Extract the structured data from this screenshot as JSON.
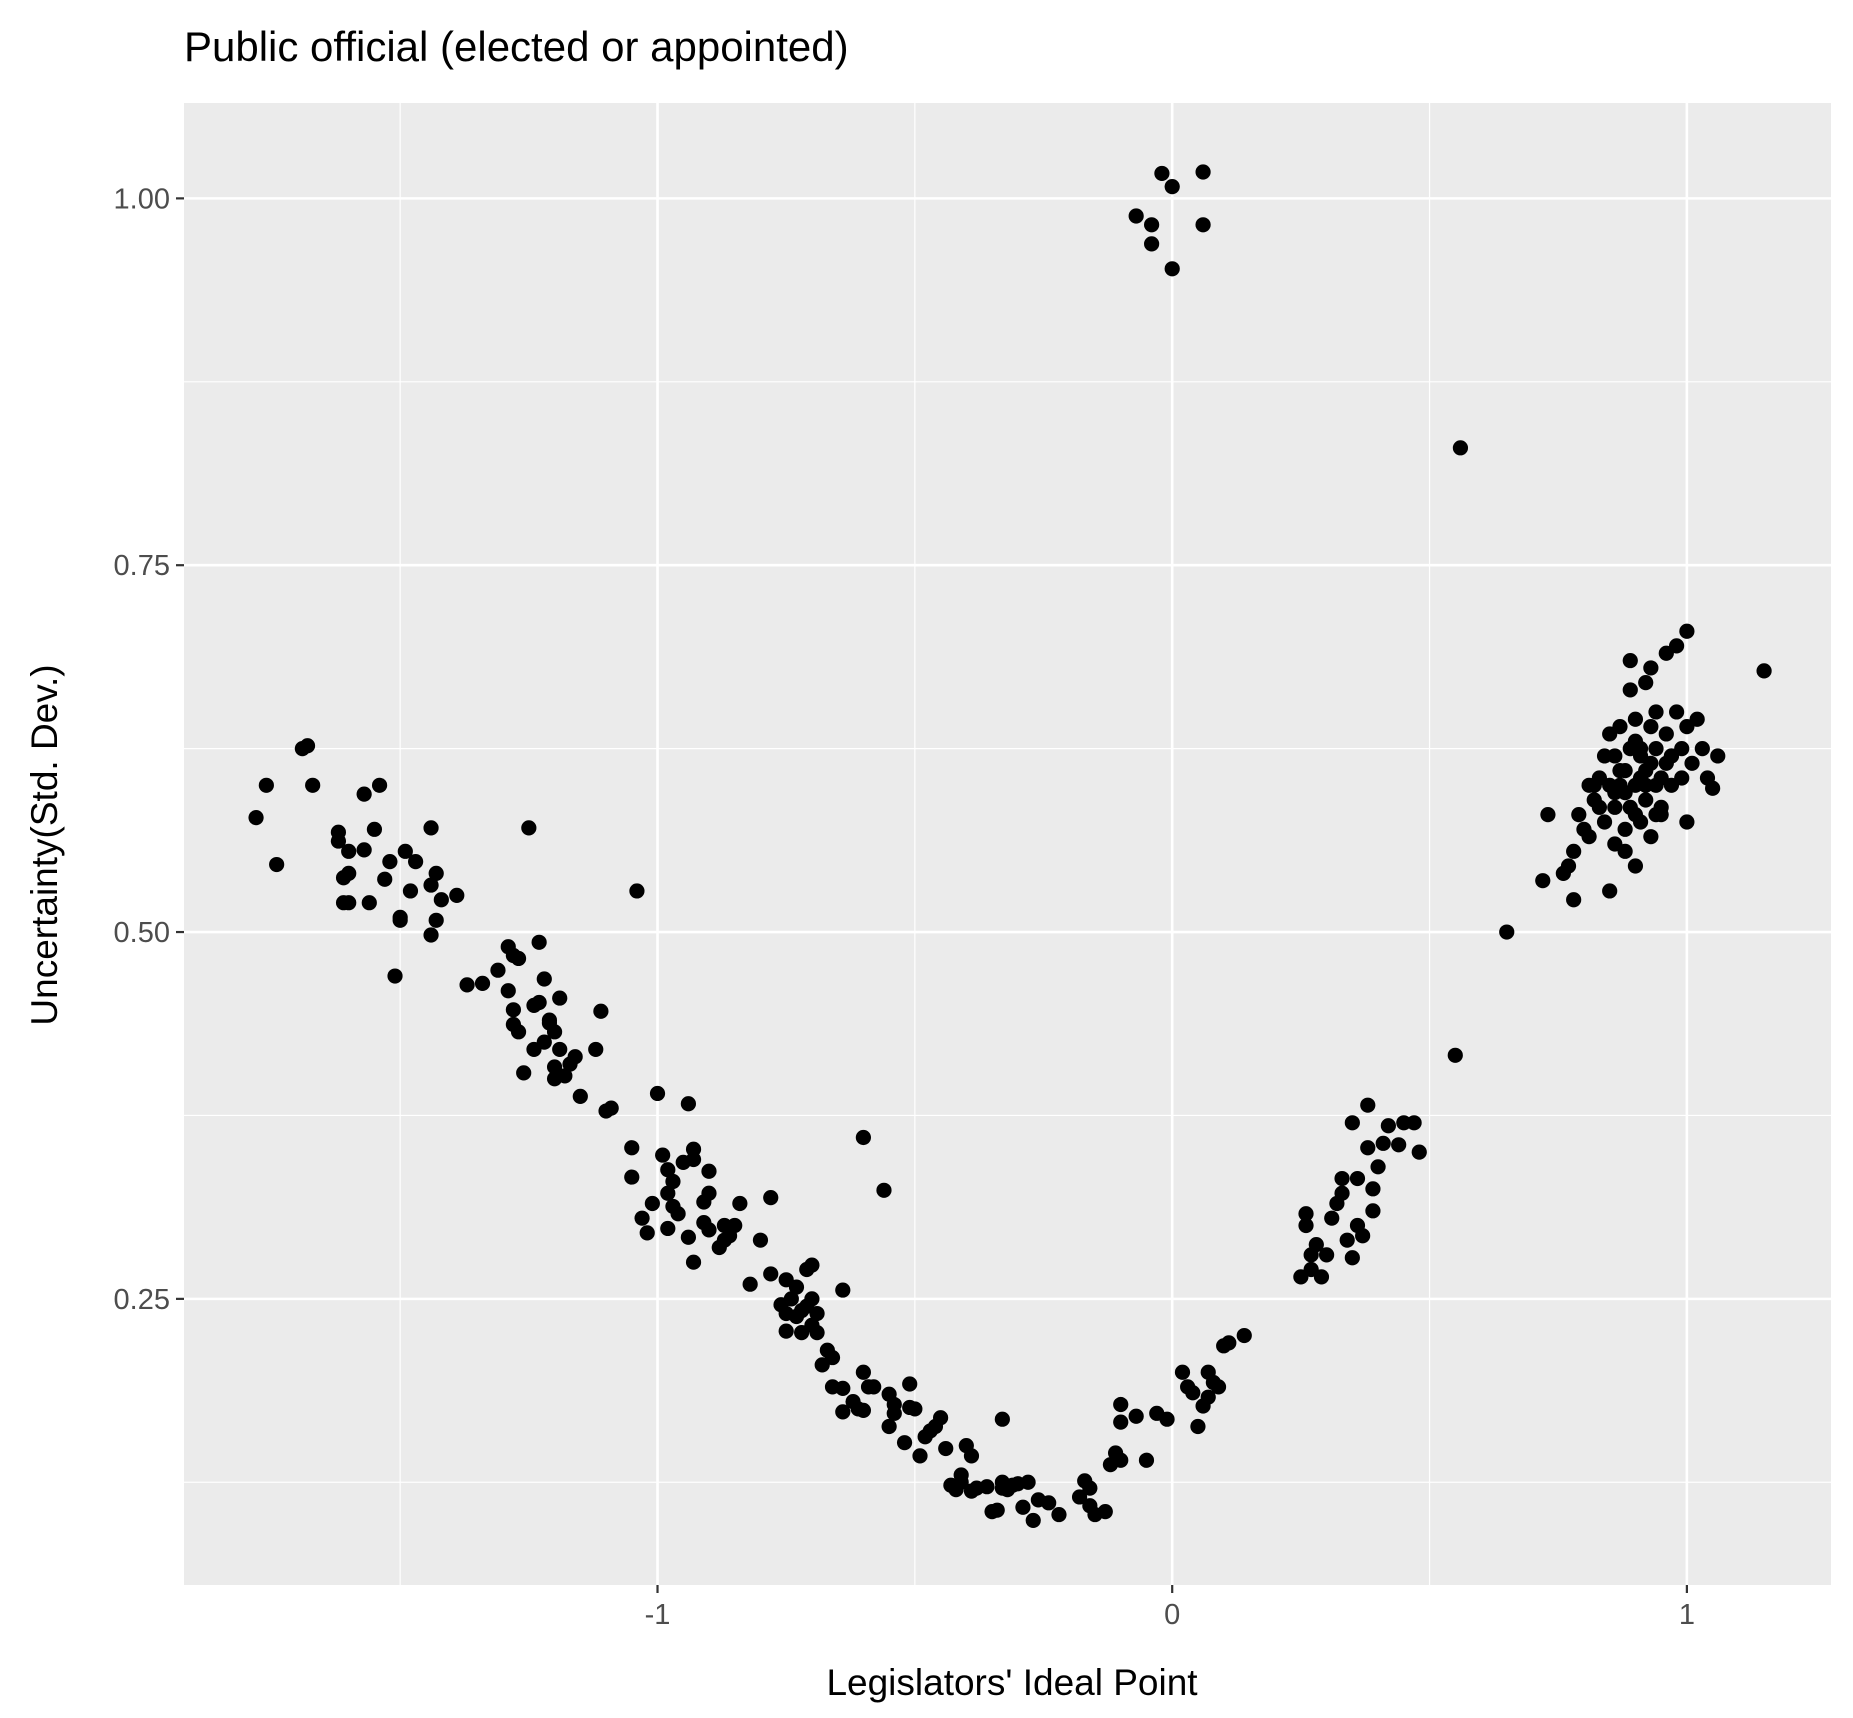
{
  "chart_data": {
    "type": "scatter",
    "title": "Public official (elected or appointed)",
    "xlabel": "Legislators' Ideal Point",
    "ylabel": "Uncertainty(Std. Dev.)",
    "xlim": [
      -1.92,
      1.28
    ],
    "ylim": [
      0.055,
      1.065
    ],
    "x_ticks": [
      -1,
      0,
      1
    ],
    "x_tick_labels": [
      "-1",
      "0",
      "1"
    ],
    "y_ticks": [
      0.25,
      0.5,
      0.75,
      1.0
    ],
    "y_tick_labels": [
      "0.25",
      "0.50",
      "0.75",
      "1.00"
    ],
    "grid": true,
    "colors": {
      "panel": "#ebebeb",
      "grid": "#ffffff",
      "point": "#000000"
    },
    "series": [
      {
        "points": [
          [
            -1.78,
            0.578
          ],
          [
            -1.76,
            0.6
          ],
          [
            -1.74,
            0.546
          ],
          [
            -1.69,
            0.625
          ],
          [
            -1.68,
            0.627
          ],
          [
            -1.67,
            0.6
          ],
          [
            -1.62,
            0.568
          ],
          [
            -1.62,
            0.562
          ],
          [
            -1.61,
            0.537
          ],
          [
            -1.6,
            0.54
          ],
          [
            -1.6,
            0.555
          ],
          [
            -1.61,
            0.52
          ],
          [
            -1.6,
            0.52
          ],
          [
            -1.57,
            0.594
          ],
          [
            -1.57,
            0.556
          ],
          [
            -1.56,
            0.52
          ],
          [
            -1.55,
            0.57
          ],
          [
            -1.54,
            0.6
          ],
          [
            -1.53,
            0.536
          ],
          [
            -1.52,
            0.548
          ],
          [
            -1.51,
            0.47
          ],
          [
            -1.5,
            0.51
          ],
          [
            -1.5,
            0.508
          ],
          [
            -1.49,
            0.555
          ],
          [
            -1.48,
            0.528
          ],
          [
            -1.47,
            0.548
          ],
          [
            -1.44,
            0.571
          ],
          [
            -1.44,
            0.532
          ],
          [
            -1.43,
            0.54
          ],
          [
            -1.43,
            0.508
          ],
          [
            -1.42,
            0.522
          ],
          [
            -1.44,
            0.498
          ],
          [
            -1.39,
            0.525
          ],
          [
            -1.37,
            0.464
          ],
          [
            -1.34,
            0.465
          ],
          [
            -1.31,
            0.474
          ],
          [
            -1.29,
            0.49
          ],
          [
            -1.29,
            0.46
          ],
          [
            -1.28,
            0.484
          ],
          [
            -1.28,
            0.447
          ],
          [
            -1.28,
            0.437
          ],
          [
            -1.27,
            0.432
          ],
          [
            -1.27,
            0.482
          ],
          [
            -1.26,
            0.404
          ],
          [
            -1.25,
            0.571
          ],
          [
            -1.24,
            0.45
          ],
          [
            -1.24,
            0.42
          ],
          [
            -1.23,
            0.493
          ],
          [
            -1.23,
            0.452
          ],
          [
            -1.22,
            0.468
          ],
          [
            -1.22,
            0.425
          ],
          [
            -1.21,
            0.438
          ],
          [
            -1.21,
            0.44
          ],
          [
            -1.2,
            0.432
          ],
          [
            -1.2,
            0.408
          ],
          [
            -1.2,
            0.4
          ],
          [
            -1.19,
            0.455
          ],
          [
            -1.19,
            0.42
          ],
          [
            -1.18,
            0.402
          ],
          [
            -1.17,
            0.41
          ],
          [
            -1.16,
            0.415
          ],
          [
            -1.15,
            0.388
          ],
          [
            -1.12,
            0.42
          ],
          [
            -1.11,
            0.446
          ],
          [
            -1.1,
            0.378
          ],
          [
            -1.09,
            0.38
          ],
          [
            -1.05,
            0.353
          ],
          [
            -1.05,
            0.333
          ],
          [
            -1.04,
            0.528
          ],
          [
            -1.03,
            0.305
          ],
          [
            -1.02,
            0.295
          ],
          [
            -1.01,
            0.315
          ],
          [
            -1.0,
            0.39
          ],
          [
            -0.99,
            0.348
          ],
          [
            -0.98,
            0.322
          ],
          [
            -0.98,
            0.338
          ],
          [
            -0.98,
            0.298
          ],
          [
            -0.97,
            0.33
          ],
          [
            -0.97,
            0.313
          ],
          [
            -0.96,
            0.308
          ],
          [
            -0.95,
            0.343
          ],
          [
            -0.94,
            0.383
          ],
          [
            -0.94,
            0.292
          ],
          [
            -0.93,
            0.352
          ],
          [
            -0.93,
            0.345
          ],
          [
            -0.93,
            0.275
          ],
          [
            -0.91,
            0.302
          ],
          [
            -0.91,
            0.316
          ],
          [
            -0.9,
            0.322
          ],
          [
            -0.9,
            0.297
          ],
          [
            -0.9,
            0.337
          ],
          [
            -0.88,
            0.285
          ],
          [
            -0.87,
            0.29
          ],
          [
            -0.87,
            0.3
          ],
          [
            -0.86,
            0.293
          ],
          [
            -0.85,
            0.3
          ],
          [
            -0.84,
            0.315
          ],
          [
            -0.82,
            0.26
          ],
          [
            -0.8,
            0.29
          ],
          [
            -0.78,
            0.267
          ],
          [
            -0.78,
            0.319
          ],
          [
            -0.76,
            0.246
          ],
          [
            -0.75,
            0.263
          ],
          [
            -0.75,
            0.24
          ],
          [
            -0.75,
            0.228
          ],
          [
            -0.74,
            0.25
          ],
          [
            -0.73,
            0.258
          ],
          [
            -0.73,
            0.238
          ],
          [
            -0.72,
            0.242
          ],
          [
            -0.72,
            0.227
          ],
          [
            -0.71,
            0.245
          ],
          [
            -0.71,
            0.27
          ],
          [
            -0.7,
            0.273
          ],
          [
            -0.7,
            0.232
          ],
          [
            -0.7,
            0.25
          ],
          [
            -0.69,
            0.24
          ],
          [
            -0.69,
            0.227
          ],
          [
            -0.68,
            0.205
          ],
          [
            -0.67,
            0.215
          ],
          [
            -0.66,
            0.21
          ],
          [
            -0.66,
            0.19
          ],
          [
            -0.64,
            0.173
          ],
          [
            -0.64,
            0.256
          ],
          [
            -0.64,
            0.189
          ],
          [
            -0.62,
            0.18
          ],
          [
            -0.61,
            0.175
          ],
          [
            -0.6,
            0.174
          ],
          [
            -0.6,
            0.36
          ],
          [
            -0.6,
            0.2
          ],
          [
            -0.59,
            0.19
          ],
          [
            -0.58,
            0.19
          ],
          [
            -0.56,
            0.324
          ],
          [
            -0.55,
            0.185
          ],
          [
            -0.55,
            0.163
          ],
          [
            -0.54,
            0.178
          ],
          [
            -0.54,
            0.172
          ],
          [
            -0.52,
            0.152
          ],
          [
            -0.51,
            0.192
          ],
          [
            -0.51,
            0.176
          ],
          [
            -0.5,
            0.175
          ],
          [
            -0.49,
            0.143
          ],
          [
            -0.48,
            0.156
          ],
          [
            -0.47,
            0.16
          ],
          [
            -0.46,
            0.163
          ],
          [
            -0.45,
            0.169
          ],
          [
            -0.44,
            0.148
          ],
          [
            -0.43,
            0.123
          ],
          [
            -0.42,
            0.12
          ],
          [
            -0.41,
            0.13
          ],
          [
            -0.41,
            0.125
          ],
          [
            -0.4,
            0.15
          ],
          [
            -0.39,
            0.143
          ],
          [
            -0.39,
            0.119
          ],
          [
            -0.38,
            0.121
          ],
          [
            -0.36,
            0.122
          ],
          [
            -0.35,
            0.105
          ],
          [
            -0.34,
            0.106
          ],
          [
            -0.33,
            0.125
          ],
          [
            -0.33,
            0.121
          ],
          [
            -0.33,
            0.168
          ],
          [
            -0.32,
            0.12
          ],
          [
            -0.31,
            0.123
          ],
          [
            -0.3,
            0.124
          ],
          [
            -0.29,
            0.108
          ],
          [
            -0.28,
            0.125
          ],
          [
            -0.27,
            0.099
          ],
          [
            -0.26,
            0.113
          ],
          [
            -0.24,
            0.111
          ],
          [
            -0.22,
            0.103
          ],
          [
            -0.18,
            0.115
          ],
          [
            -0.17,
            0.126
          ],
          [
            -0.16,
            0.109
          ],
          [
            -0.16,
            0.121
          ],
          [
            -0.15,
            0.103
          ],
          [
            -0.13,
            0.105
          ],
          [
            -0.12,
            0.137
          ],
          [
            -0.11,
            0.145
          ],
          [
            -0.1,
            0.14
          ],
          [
            -0.1,
            0.178
          ],
          [
            -0.1,
            0.166
          ],
          [
            -0.07,
            0.17
          ],
          [
            -0.05,
            0.14
          ],
          [
            -0.03,
            0.172
          ],
          [
            -0.01,
            0.168
          ],
          [
            0.02,
            0.2
          ],
          [
            0.03,
            0.19
          ],
          [
            0.04,
            0.186
          ],
          [
            0.05,
            0.163
          ],
          [
            0.06,
            0.177
          ],
          [
            0.07,
            0.2
          ],
          [
            0.07,
            0.183
          ],
          [
            0.08,
            0.193
          ],
          [
            0.09,
            0.19
          ],
          [
            0.1,
            0.218
          ],
          [
            0.11,
            0.22
          ],
          [
            0.14,
            0.225
          ],
          [
            0.25,
            0.265
          ],
          [
            0.26,
            0.3
          ],
          [
            0.26,
            0.308
          ],
          [
            0.27,
            0.28
          ],
          [
            0.27,
            0.27
          ],
          [
            0.28,
            0.287
          ],
          [
            0.29,
            0.265
          ],
          [
            0.3,
            0.28
          ],
          [
            0.31,
            0.305
          ],
          [
            0.32,
            0.315
          ],
          [
            0.33,
            0.322
          ],
          [
            0.33,
            0.332
          ],
          [
            0.34,
            0.29
          ],
          [
            0.35,
            0.278
          ],
          [
            0.35,
            0.37
          ],
          [
            0.36,
            0.3
          ],
          [
            0.36,
            0.332
          ],
          [
            0.37,
            0.293
          ],
          [
            0.38,
            0.353
          ],
          [
            0.38,
            0.382
          ],
          [
            0.39,
            0.31
          ],
          [
            0.39,
            0.325
          ],
          [
            0.4,
            0.34
          ],
          [
            0.41,
            0.356
          ],
          [
            0.42,
            0.368
          ],
          [
            0.44,
            0.355
          ],
          [
            0.45,
            0.37
          ],
          [
            0.47,
            0.37
          ],
          [
            0.48,
            0.35
          ],
          [
            0.55,
            0.416
          ],
          [
            0.56,
            0.83
          ],
          [
            0.65,
            0.5
          ],
          [
            0.72,
            0.535
          ],
          [
            0.73,
            0.58
          ],
          [
            0.76,
            0.54
          ],
          [
            0.77,
            0.545
          ],
          [
            0.78,
            0.555
          ],
          [
            0.78,
            0.522
          ],
          [
            0.79,
            0.58
          ],
          [
            0.8,
            0.57
          ],
          [
            0.81,
            0.565
          ],
          [
            0.82,
            0.6
          ],
          [
            0.82,
            0.59
          ],
          [
            0.83,
            0.605
          ],
          [
            0.83,
            0.585
          ],
          [
            0.84,
            0.62
          ],
          [
            0.84,
            0.575
          ],
          [
            0.85,
            0.635
          ],
          [
            0.85,
            0.6
          ],
          [
            0.85,
            0.528
          ],
          [
            0.86,
            0.595
          ],
          [
            0.86,
            0.585
          ],
          [
            0.86,
            0.56
          ],
          [
            0.87,
            0.64
          ],
          [
            0.87,
            0.61
          ],
          [
            0.88,
            0.595
          ],
          [
            0.88,
            0.57
          ],
          [
            0.88,
            0.555
          ],
          [
            0.89,
            0.665
          ],
          [
            0.89,
            0.625
          ],
          [
            0.89,
            0.585
          ],
          [
            0.89,
            0.685
          ],
          [
            0.9,
            0.6
          ],
          [
            0.9,
            0.645
          ],
          [
            0.9,
            0.58
          ],
          [
            0.9,
            0.545
          ],
          [
            0.91,
            0.625
          ],
          [
            0.91,
            0.605
          ],
          [
            0.91,
            0.575
          ],
          [
            0.92,
            0.61
          ],
          [
            0.92,
            0.59
          ],
          [
            0.92,
            0.67
          ],
          [
            0.93,
            0.615
          ],
          [
            0.93,
            0.64
          ],
          [
            0.93,
            0.565
          ],
          [
            0.93,
            0.68
          ],
          [
            0.94,
            0.6
          ],
          [
            0.94,
            0.625
          ],
          [
            0.94,
            0.65
          ],
          [
            0.95,
            0.605
          ],
          [
            0.95,
            0.585
          ],
          [
            0.96,
            0.635
          ],
          [
            0.96,
            0.69
          ],
          [
            0.97,
            0.62
          ],
          [
            0.97,
            0.6
          ],
          [
            0.97,
            0.62
          ],
          [
            0.98,
            0.65
          ],
          [
            0.98,
            0.695
          ],
          [
            0.99,
            0.605
          ],
          [
            0.99,
            0.625
          ],
          [
            1.0,
            0.705
          ],
          [
            1.0,
            0.64
          ],
          [
            1.0,
            0.575
          ],
          [
            1.01,
            0.615
          ],
          [
            1.02,
            0.645
          ],
          [
            1.03,
            0.625
          ],
          [
            1.04,
            0.605
          ],
          [
            1.05,
            0.598
          ],
          [
            1.06,
            0.62
          ],
          [
            1.15,
            0.678
          ],
          [
            0.81,
            0.6
          ],
          [
            0.87,
            0.6
          ],
          [
            0.91,
            0.62
          ],
          [
            0.95,
            0.58
          ],
          [
            0.88,
            0.61
          ],
          [
            0.92,
            0.6
          ],
          [
            0.96,
            0.615
          ],
          [
            0.9,
            0.63
          ],
          [
            0.86,
            0.62
          ],
          [
            0.94,
            0.58
          ],
          [
            -0.07,
            0.988
          ],
          [
            -0.04,
            0.982
          ],
          [
            -0.04,
            0.969
          ],
          [
            -0.02,
            1.017
          ],
          [
            0.0,
            1.008
          ],
          [
            0.0,
            0.952
          ],
          [
            0.06,
            1.018
          ],
          [
            0.06,
            0.982
          ]
        ]
      }
    ]
  }
}
